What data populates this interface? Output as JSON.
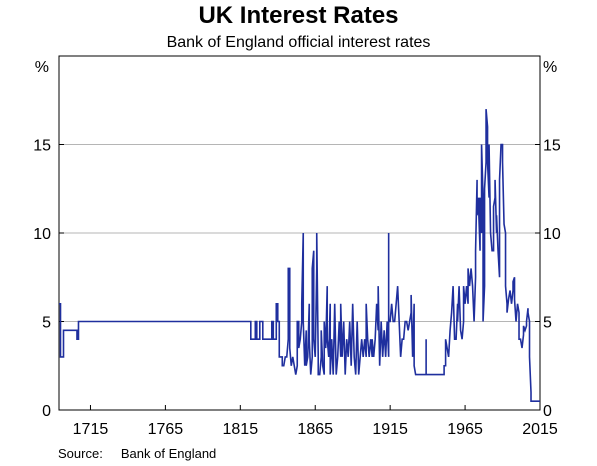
{
  "title": "UK Interest Rates",
  "subtitle": "Bank of England official interest rates",
  "source_label": "Source:",
  "source_value": "Bank of England",
  "chart_data": {
    "type": "line",
    "y_unit_left": "%",
    "y_unit_right": "%",
    "xlim": [
      1694,
      2015
    ],
    "ylim": [
      0,
      20
    ],
    "x_ticks": [
      1715,
      1765,
      1815,
      1865,
      1915,
      1965,
      2015
    ],
    "y_ticks": [
      0,
      5,
      10,
      15
    ],
    "grid": "horizontal",
    "line_color": "#1f2f9e",
    "series": [
      {
        "values": [
          [
            1694,
            6
          ],
          [
            1695,
            6
          ],
          [
            1695,
            3
          ],
          [
            1696,
            3
          ],
          [
            1697,
            3
          ],
          [
            1697,
            4.5
          ],
          [
            1704,
            4.5
          ],
          [
            1706,
            4.5
          ],
          [
            1706,
            4
          ],
          [
            1707,
            4
          ],
          [
            1707,
            5
          ],
          [
            1745,
            5
          ],
          [
            1785,
            5
          ],
          [
            1820,
            5
          ],
          [
            1822,
            5
          ],
          [
            1822,
            4
          ],
          [
            1825,
            4
          ],
          [
            1825,
            5
          ],
          [
            1826,
            5
          ],
          [
            1826,
            4
          ],
          [
            1828,
            4
          ],
          [
            1828,
            5
          ],
          [
            1830,
            5
          ],
          [
            1830,
            4
          ],
          [
            1836,
            4
          ],
          [
            1836,
            5
          ],
          [
            1837,
            5
          ],
          [
            1837,
            4
          ],
          [
            1839,
            4
          ],
          [
            1839,
            6
          ],
          [
            1840,
            6
          ],
          [
            1840,
            5
          ],
          [
            1841,
            5
          ],
          [
            1841,
            3
          ],
          [
            1843,
            3
          ],
          [
            1843,
            2.5
          ],
          [
            1844,
            2.5
          ],
          [
            1845,
            3
          ],
          [
            1846,
            3
          ],
          [
            1847,
            4
          ],
          [
            1847,
            8
          ],
          [
            1848,
            8
          ],
          [
            1848,
            3.5
          ],
          [
            1849,
            2.5
          ],
          [
            1850,
            3
          ],
          [
            1851,
            2.5
          ],
          [
            1852,
            2
          ],
          [
            1853,
            2.5
          ],
          [
            1853,
            5
          ],
          [
            1854,
            5
          ],
          [
            1854,
            3.5
          ],
          [
            1855,
            4
          ],
          [
            1856,
            5
          ],
          [
            1856,
            6
          ],
          [
            1857,
            10
          ],
          [
            1857,
            5
          ],
          [
            1858,
            2.5
          ],
          [
            1859,
            4.5
          ],
          [
            1859,
            2.5
          ],
          [
            1860,
            3
          ],
          [
            1861,
            6
          ],
          [
            1861,
            4
          ],
          [
            1862,
            2
          ],
          [
            1863,
            3
          ],
          [
            1863,
            8
          ],
          [
            1864,
            9
          ],
          [
            1864,
            4
          ],
          [
            1865,
            3
          ],
          [
            1866,
            8
          ],
          [
            1866,
            10
          ],
          [
            1867,
            3
          ],
          [
            1867,
            2
          ],
          [
            1868,
            2
          ],
          [
            1869,
            3
          ],
          [
            1869,
            4.5
          ],
          [
            1870,
            2.5
          ],
          [
            1871,
            2
          ],
          [
            1871,
            5
          ],
          [
            1872,
            3.5
          ],
          [
            1873,
            7
          ],
          [
            1873,
            4
          ],
          [
            1874,
            3
          ],
          [
            1875,
            6
          ],
          [
            1875,
            2
          ],
          [
            1876,
            4
          ],
          [
            1877,
            2
          ],
          [
            1878,
            6
          ],
          [
            1879,
            2
          ],
          [
            1880,
            3
          ],
          [
            1881,
            5
          ],
          [
            1882,
            3
          ],
          [
            1882,
            6
          ],
          [
            1883,
            3
          ],
          [
            1884,
            5
          ],
          [
            1885,
            2
          ],
          [
            1886,
            4
          ],
          [
            1887,
            3
          ],
          [
            1888,
            5
          ],
          [
            1889,
            2.5
          ],
          [
            1890,
            6
          ],
          [
            1891,
            3
          ],
          [
            1892,
            2
          ],
          [
            1893,
            5
          ],
          [
            1894,
            2
          ],
          [
            1896,
            4
          ],
          [
            1897,
            3
          ],
          [
            1898,
            4
          ],
          [
            1899,
            3
          ],
          [
            1899,
            6
          ],
          [
            1900,
            4
          ],
          [
            1901,
            3
          ],
          [
            1902,
            4
          ],
          [
            1903,
            3
          ],
          [
            1903,
            4
          ],
          [
            1904,
            3
          ],
          [
            1905,
            4
          ],
          [
            1906,
            6
          ],
          [
            1907,
            4.5
          ],
          [
            1907,
            7
          ],
          [
            1908,
            2.5
          ],
          [
            1909,
            5
          ],
          [
            1910,
            3
          ],
          [
            1911,
            4.5
          ],
          [
            1912,
            3
          ],
          [
            1913,
            5
          ],
          [
            1914,
            3
          ],
          [
            1914,
            10
          ],
          [
            1914,
            5
          ],
          [
            1915,
            5
          ],
          [
            1916,
            6
          ],
          [
            1917,
            5
          ],
          [
            1918,
            5
          ],
          [
            1919,
            6
          ],
          [
            1920,
            7
          ],
          [
            1921,
            5
          ],
          [
            1922,
            3
          ],
          [
            1923,
            4
          ],
          [
            1924,
            4
          ],
          [
            1925,
            5
          ],
          [
            1926,
            5
          ],
          [
            1927,
            4.5
          ],
          [
            1929,
            5.5
          ],
          [
            1929,
            6.5
          ],
          [
            1930,
            3
          ],
          [
            1931,
            6
          ],
          [
            1931,
            2.5
          ],
          [
            1932,
            2
          ],
          [
            1939,
            2
          ],
          [
            1939,
            4
          ],
          [
            1939,
            2
          ],
          [
            1951,
            2
          ],
          [
            1951,
            2.5
          ],
          [
            1952,
            2.5
          ],
          [
            1952,
            4
          ],
          [
            1953,
            3.5
          ],
          [
            1954,
            3
          ],
          [
            1955,
            4.5
          ],
          [
            1956,
            5.5
          ],
          [
            1957,
            7
          ],
          [
            1958,
            4
          ],
          [
            1959,
            4
          ],
          [
            1960,
            6
          ],
          [
            1960,
            5
          ],
          [
            1961,
            7
          ],
          [
            1962,
            4.5
          ],
          [
            1963,
            4
          ],
          [
            1964,
            5
          ],
          [
            1964,
            7
          ],
          [
            1965,
            6
          ],
          [
            1966,
            7
          ],
          [
            1967,
            6
          ],
          [
            1967,
            8
          ],
          [
            1968,
            7
          ],
          [
            1969,
            8
          ],
          [
            1970,
            7
          ],
          [
            1971,
            5
          ],
          [
            1972,
            7.5
          ],
          [
            1972,
            9
          ],
          [
            1973,
            13
          ],
          [
            1973,
            11
          ],
          [
            1974,
            12
          ],
          [
            1974,
            11.5
          ],
          [
            1975,
            9
          ],
          [
            1975,
            12
          ],
          [
            1976,
            10
          ],
          [
            1976,
            15
          ],
          [
            1977,
            12
          ],
          [
            1977,
            5
          ],
          [
            1978,
            7
          ],
          [
            1978,
            12.5
          ],
          [
            1979,
            14
          ],
          [
            1979,
            17
          ],
          [
            1980,
            16
          ],
          [
            1980,
            14
          ],
          [
            1981,
            12
          ],
          [
            1981,
            15
          ],
          [
            1982,
            10
          ],
          [
            1983,
            9
          ],
          [
            1984,
            9
          ],
          [
            1984,
            11.5
          ],
          [
            1985,
            12
          ],
          [
            1985,
            13
          ],
          [
            1986,
            10
          ],
          [
            1986,
            11
          ],
          [
            1987,
            9
          ],
          [
            1988,
            7.5
          ],
          [
            1988,
            13
          ],
          [
            1989,
            15
          ],
          [
            1990,
            15
          ],
          [
            1990,
            14
          ],
          [
            1991,
            10.5
          ],
          [
            1992,
            10
          ],
          [
            1992,
            7
          ],
          [
            1993,
            6
          ],
          [
            1993,
            5.5
          ],
          [
            1994,
            6.25
          ],
          [
            1995,
            6.75
          ],
          [
            1996,
            6
          ],
          [
            1997,
            6.75
          ],
          [
            1997,
            7.25
          ],
          [
            1998,
            7.5
          ],
          [
            1998,
            6.25
          ],
          [
            1999,
            5
          ],
          [
            2000,
            6
          ],
          [
            2001,
            5.5
          ],
          [
            2001,
            4
          ],
          [
            2002,
            4
          ],
          [
            2003,
            3.5
          ],
          [
            2004,
            4.25
          ],
          [
            2004,
            4.75
          ],
          [
            2005,
            4.5
          ],
          [
            2006,
            4.75
          ],
          [
            2006,
            5
          ],
          [
            2007,
            5.75
          ],
          [
            2007,
            5.5
          ],
          [
            2008,
            5
          ],
          [
            2008,
            3
          ],
          [
            2009,
            1
          ],
          [
            2009,
            0.5
          ],
          [
            2015,
            0.5
          ]
        ]
      }
    ]
  }
}
